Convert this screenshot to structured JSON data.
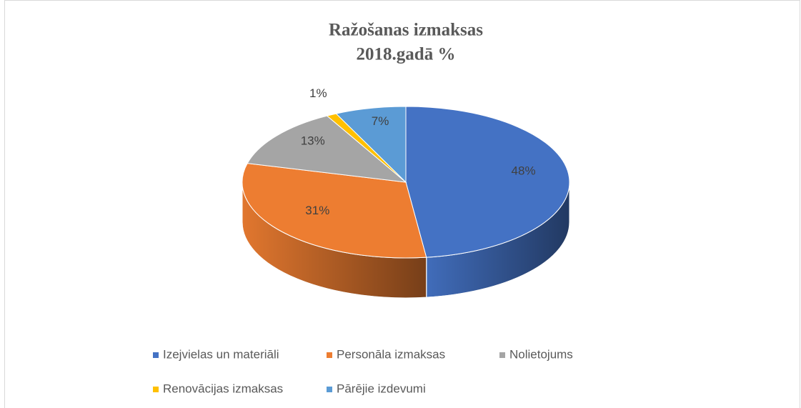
{
  "chart_data": {
    "type": "pie3d",
    "title": [
      "Ražošanas izmaksas",
      "2018.gadā %"
    ],
    "categories": [
      "Izejvielas un materiāli",
      "Personāla izmaksas",
      "Nolietojums",
      "Renovācijas izmaksas",
      "Pārējie izdevumi"
    ],
    "values": [
      48,
      31,
      13,
      1,
      7
    ],
    "value_labels": [
      "48%",
      "31%",
      "13%",
      "1%",
      "7%"
    ],
    "colors": [
      "#4472c4",
      "#ed7d31",
      "#a5a5a5",
      "#ffc000",
      "#5b9bd5"
    ],
    "legend": "bottom"
  }
}
